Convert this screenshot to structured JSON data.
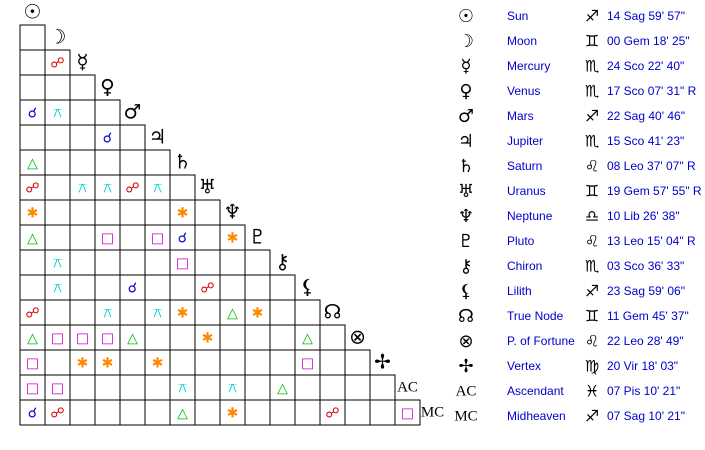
{
  "bodies": [
    {
      "glyph": "☉",
      "name": "Sun",
      "sign": "♐",
      "position": "14 Sag 59' 57\""
    },
    {
      "glyph": "☽",
      "name": "Moon",
      "sign": "♊",
      "position": "00 Gem 18' 25\""
    },
    {
      "glyph": "☿",
      "name": "Mercury",
      "sign": "♏",
      "position": "24 Sco 22' 40\""
    },
    {
      "glyph": "♀",
      "name": "Venus",
      "sign": "♏",
      "position": "17 Sco 07' 31\" R"
    },
    {
      "glyph": "♂",
      "name": "Mars",
      "sign": "♐",
      "position": "22 Sag 40' 46\""
    },
    {
      "glyph": "♃",
      "name": "Jupiter",
      "sign": "♏",
      "position": "15 Sco 41' 23\""
    },
    {
      "glyph": "♄",
      "name": "Saturn",
      "sign": "♌",
      "position": "08 Leo 37' 07\" R"
    },
    {
      "glyph": "♅",
      "name": "Uranus",
      "sign": "♊",
      "position": "19 Gem 57' 55\" R"
    },
    {
      "glyph": "♆",
      "name": "Neptune",
      "sign": "♎",
      "position": "10 Lib 26' 38\""
    },
    {
      "glyph": "♇",
      "name": "Pluto",
      "sign": "♌",
      "position": "13 Leo 15' 04\" R"
    },
    {
      "glyph": "⚷",
      "name": "Chiron",
      "sign": "♏",
      "position": "03 Sco 36' 33\""
    },
    {
      "glyph": "⚸",
      "name": "Lilith",
      "sign": "♐",
      "position": "23 Sag 59' 06\""
    },
    {
      "glyph": "☊",
      "name": "True Node",
      "sign": "♊",
      "position": "11 Gem 45' 37\""
    },
    {
      "glyph": "⊗",
      "name": "P. of Fortune",
      "sign": "♌",
      "position": "22 Leo 28' 49\""
    },
    {
      "glyph": "✢",
      "name": "Vertex",
      "sign": "♍",
      "position": "20 Vir 18' 03\""
    },
    {
      "glyph": "AC",
      "name": "Ascendant",
      "sign": "♓",
      "position": "07 Pis 10' 21\""
    },
    {
      "glyph": "MC",
      "name": "Midheaven",
      "sign": "♐",
      "position": "07 Sag 10' 21\""
    }
  ],
  "aspect_colors": {
    "☌": "#0000cc",
    "☍": "#dd0000",
    "△": "#00bb00",
    "□": "#cc00cc",
    "✱": "#ff8800",
    "⚻": "#00cccc"
  },
  "grid": {
    "rows": [
      [
        null
      ],
      [
        null,
        "☍"
      ],
      [
        null,
        null,
        null
      ],
      [
        "☌",
        "⚻",
        null,
        null
      ],
      [
        null,
        null,
        null,
        "☌",
        null
      ],
      [
        "△",
        null,
        null,
        null,
        null,
        null
      ],
      [
        "☍",
        null,
        "⚻",
        "⚻",
        "☍",
        "⚻",
        null
      ],
      [
        "✱",
        null,
        null,
        null,
        null,
        null,
        "✱",
        null
      ],
      [
        "△",
        null,
        null,
        "□",
        null,
        "□",
        "☌",
        null,
        "✱"
      ],
      [
        null,
        "⚻",
        null,
        null,
        null,
        null,
        "□",
        null,
        null,
        null
      ],
      [
        null,
        "⚻",
        null,
        null,
        "☌",
        null,
        null,
        "☍",
        null,
        null,
        null
      ],
      [
        "☍",
        null,
        null,
        "⚻",
        null,
        "⚻",
        "✱",
        null,
        "△",
        "✱",
        null,
        null
      ],
      [
        "△",
        "□",
        "□",
        "□",
        "△",
        null,
        null,
        "✱",
        null,
        null,
        null,
        "△",
        null
      ],
      [
        "□",
        null,
        "✱",
        "✱",
        null,
        "✱",
        null,
        null,
        null,
        null,
        null,
        "□",
        null,
        null
      ],
      [
        "□",
        "□",
        null,
        null,
        null,
        null,
        "⚻",
        null,
        "⚻",
        null,
        "△",
        null,
        null,
        null,
        null
      ],
      [
        "☌",
        "☍",
        null,
        null,
        null,
        null,
        "△",
        null,
        "✱",
        null,
        null,
        null,
        "☍",
        null,
        null,
        "□"
      ]
    ]
  }
}
